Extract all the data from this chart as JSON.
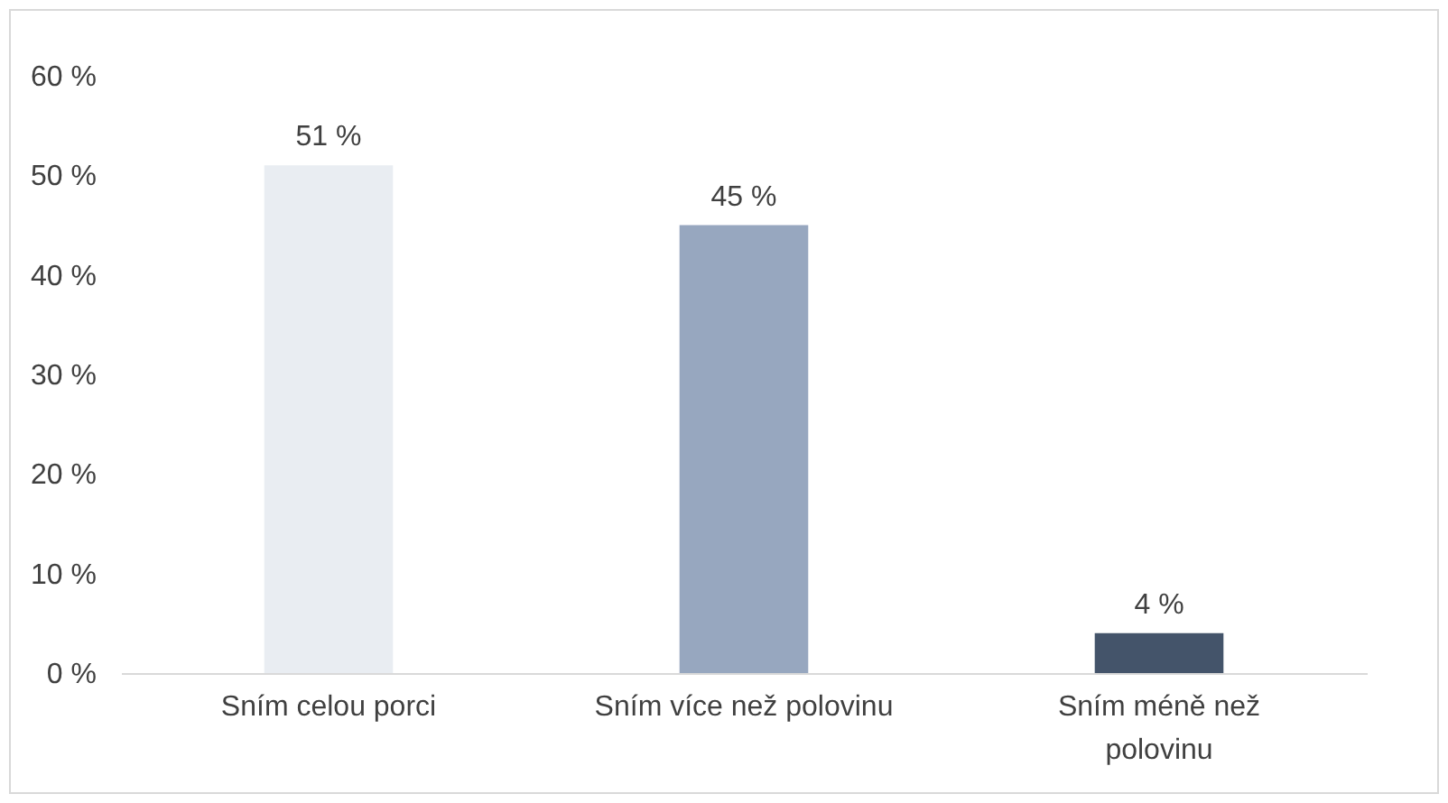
{
  "chart_data": {
    "type": "bar",
    "categories": [
      "Sním celou porci",
      "Sním více než polovinu",
      "Sním méně než polovinu"
    ],
    "values": [
      51,
      45,
      4
    ],
    "colors": [
      "#e9edf2",
      "#97a7bf",
      "#44546a"
    ],
    "value_labels": [
      "51 %",
      "45 %",
      "4 %"
    ],
    "ylim": [
      0,
      60
    ],
    "yticks": [
      {
        "value": 0,
        "label": "0 %"
      },
      {
        "value": 10,
        "label": "10 %"
      },
      {
        "value": 20,
        "label": "20 %"
      },
      {
        "value": 30,
        "label": "30 %"
      },
      {
        "value": 40,
        "label": "40 %"
      },
      {
        "value": 50,
        "label": "50 %"
      },
      {
        "value": 60,
        "label": "60 %"
      }
    ],
    "grid": false
  }
}
